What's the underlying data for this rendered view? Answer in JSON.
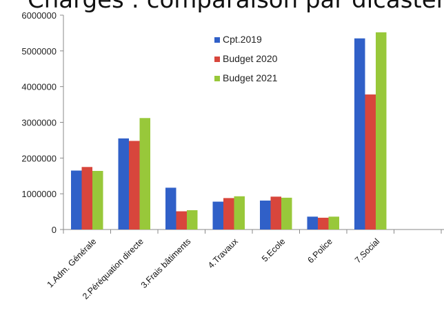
{
  "chart_data": {
    "type": "bar",
    "title": "Charges : comparaison par dicastère",
    "categories": [
      "1.Adm. Générale",
      "2.Péréquation directe",
      "3.Frais bâtiments",
      "4.Travaux",
      "5.Ecole",
      "6.Police",
      "7.Social"
    ],
    "series": [
      {
        "name": "Cpt.2019",
        "color": "#3060c8",
        "values": [
          1650000,
          2550000,
          1170000,
          780000,
          810000,
          360000,
          5350000
        ]
      },
      {
        "name": "Budget 2020",
        "color": "#d8463c",
        "values": [
          1750000,
          2480000,
          510000,
          880000,
          920000,
          330000,
          3780000
        ]
      },
      {
        "name": "Budget 2021",
        "color": "#98c83a",
        "values": [
          1640000,
          3120000,
          540000,
          930000,
          890000,
          360000,
          5520000
        ]
      }
    ],
    "ylim": [
      0,
      6000000
    ],
    "yticks": [
      "0",
      "1000000",
      "2000000",
      "3000000",
      "4000000",
      "5000000",
      "6000000"
    ],
    "grid": false,
    "legend": "top-right"
  }
}
